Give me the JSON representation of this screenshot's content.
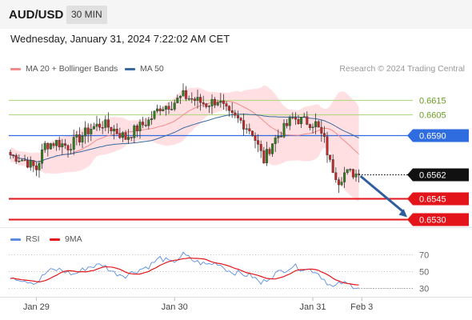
{
  "header": {
    "symbol": "AUD/USD",
    "timeframe": "30 MIN"
  },
  "datetime": "Wednesday, January 31, 2024 7:22:02 AM CET",
  "credit": "Research © 2024 Trading Central",
  "colors": {
    "background": "#ffffff",
    "header_bg": "#f5f5f5",
    "resistance": "#b9d98a",
    "resistance_text": "#6a9a25",
    "support": "#e3151a",
    "pivot": "#2f6ce0",
    "price": "#111111",
    "bollinger": "#ffd9dc",
    "ma20": "#f28b8b",
    "ma50": "#3a6aa0",
    "candle_up": "#2e7d1f",
    "candle_down": "#c62828",
    "forecast_arrow": "#2e5e9e",
    "rsi": "#5a8de0",
    "rsi_ma": "#e3151a"
  },
  "chart_data": [
    {
      "type": "candlestick",
      "legend": [
        {
          "label": "MA 20 + Bollinger Bands",
          "color": "#f28b8b"
        },
        {
          "label": "MA 50",
          "color": "#3a6aa0"
        }
      ],
      "ylim": [
        0.6524,
        0.6632
      ],
      "x_ticks": [
        {
          "label": "Jan 29",
          "bar": 9
        },
        {
          "label": "Jan 30",
          "bar": 57
        },
        {
          "label": "Jan 31",
          "bar": 105
        },
        {
          "label": "Feb 3",
          "bar": 122
        }
      ],
      "levels": [
        {
          "value": 0.6615,
          "label": "0.6615",
          "kind": "resistance"
        },
        {
          "value": 0.6605,
          "label": "0.6605",
          "kind": "resistance"
        },
        {
          "value": 0.659,
          "label": "0.6590",
          "kind": "pivot"
        },
        {
          "value": 0.6562,
          "label": "0.6562",
          "kind": "price"
        },
        {
          "value": 0.6545,
          "label": "0.6545",
          "kind": "support"
        },
        {
          "value": 0.653,
          "label": "0.6530",
          "kind": "support"
        }
      ],
      "forecast": {
        "from": 0.6562,
        "to": 0.653
      },
      "anchors": [
        [
          0,
          0.6576
        ],
        [
          5,
          0.6572
        ],
        [
          9,
          0.6566
        ],
        [
          12,
          0.6583
        ],
        [
          16,
          0.6585
        ],
        [
          20,
          0.6582
        ],
        [
          24,
          0.6588
        ],
        [
          28,
          0.6595
        ],
        [
          32,
          0.6598
        ],
        [
          36,
          0.6594
        ],
        [
          40,
          0.6588
        ],
        [
          44,
          0.6595
        ],
        [
          48,
          0.66
        ],
        [
          52,
          0.661
        ],
        [
          56,
          0.6612
        ],
        [
          60,
          0.6618
        ],
        [
          64,
          0.6615
        ],
        [
          68,
          0.6612
        ],
        [
          72,
          0.6615
        ],
        [
          76,
          0.6604
        ],
        [
          80,
          0.66
        ],
        [
          84,
          0.6592
        ],
        [
          88,
          0.6572
        ],
        [
          91,
          0.6585
        ],
        [
          94,
          0.6592
        ],
        [
          98,
          0.6602
        ],
        [
          102,
          0.66
        ],
        [
          106,
          0.6598
        ],
        [
          109,
          0.6586
        ],
        [
          111,
          0.657
        ],
        [
          114,
          0.6558
        ],
        [
          116,
          0.6563
        ],
        [
          119,
          0.6563
        ],
        [
          121,
          0.6562
        ]
      ]
    },
    {
      "type": "line",
      "legend": [
        {
          "label": "RSI",
          "color": "#5a8de0"
        },
        {
          "label": "9MA",
          "color": "#e3151a"
        }
      ],
      "ylim": [
        20,
        78
      ],
      "y_ticks": [
        70,
        50,
        30
      ],
      "rsi_anchors": [
        [
          0,
          44
        ],
        [
          4,
          40
        ],
        [
          9,
          36
        ],
        [
          13,
          50
        ],
        [
          17,
          52
        ],
        [
          22,
          46
        ],
        [
          27,
          55
        ],
        [
          32,
          58
        ],
        [
          36,
          48
        ],
        [
          40,
          45
        ],
        [
          44,
          51
        ],
        [
          48,
          56
        ],
        [
          52,
          66
        ],
        [
          56,
          60
        ],
        [
          60,
          70
        ],
        [
          64,
          62
        ],
        [
          68,
          58
        ],
        [
          72,
          60
        ],
        [
          76,
          50
        ],
        [
          80,
          47
        ],
        [
          84,
          44
        ],
        [
          87,
          35
        ],
        [
          90,
          43
        ],
        [
          94,
          50
        ],
        [
          98,
          56
        ],
        [
          102,
          53
        ],
        [
          106,
          50
        ],
        [
          109,
          40
        ],
        [
          112,
          30
        ],
        [
          115,
          36
        ],
        [
          118,
          33
        ],
        [
          121,
          31
        ]
      ]
    }
  ]
}
